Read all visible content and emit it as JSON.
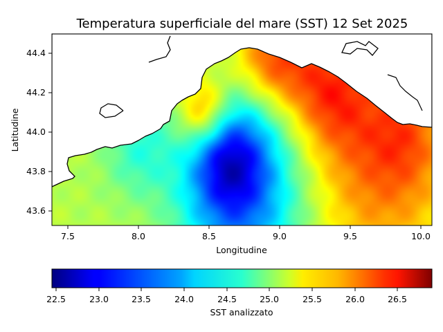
{
  "chart_data": [
    {
      "type": "heatmap",
      "title": "Temperatura superficiale del mare (SST) 12 Set 2025",
      "xlabel": "Longitudine",
      "ylabel": "Latitudine",
      "xlim": [
        7.38,
        10.08
      ],
      "ylim": [
        43.52,
        44.5
      ],
      "x_ticks": [
        "7.5",
        "8.0",
        "8.5",
        "9.0",
        "9.5",
        "10.0"
      ],
      "y_ticks": [
        "43.6",
        "43.8",
        "44.0",
        "44.2",
        "44.4"
      ],
      "colormap": "jet",
      "grid": false,
      "legend": "none",
      "field_blobs": [
        {
          "lon": 8.72,
          "lat": 43.66,
          "value": -1.5,
          "spread": 0.32
        },
        {
          "lon": 8.62,
          "lat": 43.86,
          "value": -1.0,
          "spread": 0.18
        },
        {
          "lon": 8.85,
          "lat": 44.05,
          "value": -0.3,
          "spread": 0.2
        },
        {
          "lon": 8.46,
          "lat": 44.1,
          "value": 1.0,
          "spread": 0.12
        },
        {
          "lon": 8.95,
          "lat": 44.37,
          "value": 1.0,
          "spread": 0.18
        },
        {
          "lon": 9.35,
          "lat": 44.22,
          "value": 1.0,
          "spread": 0.22
        },
        {
          "lon": 9.7,
          "lat": 43.8,
          "value": 0.8,
          "spread": 0.35
        },
        {
          "lon": 9.9,
          "lat": 44.0,
          "value": 0.5,
          "spread": 0.2
        },
        {
          "lon": 7.6,
          "lat": 43.65,
          "value": -0.1,
          "spread": 0.25
        },
        {
          "lon": 8.0,
          "lat": 43.92,
          "value": -0.6,
          "spread": 0.18
        }
      ],
      "field_base": 25.0
    },
    {
      "type": "colorbar",
      "label": "SST analizzato",
      "vmin": 22.45,
      "vmax": 26.9,
      "colormap": "jet",
      "ticks": [
        "22.5",
        "23.0",
        "23.5",
        "24.0",
        "24.5",
        "25.0",
        "25.5",
        "26.0",
        "26.5"
      ]
    }
  ]
}
